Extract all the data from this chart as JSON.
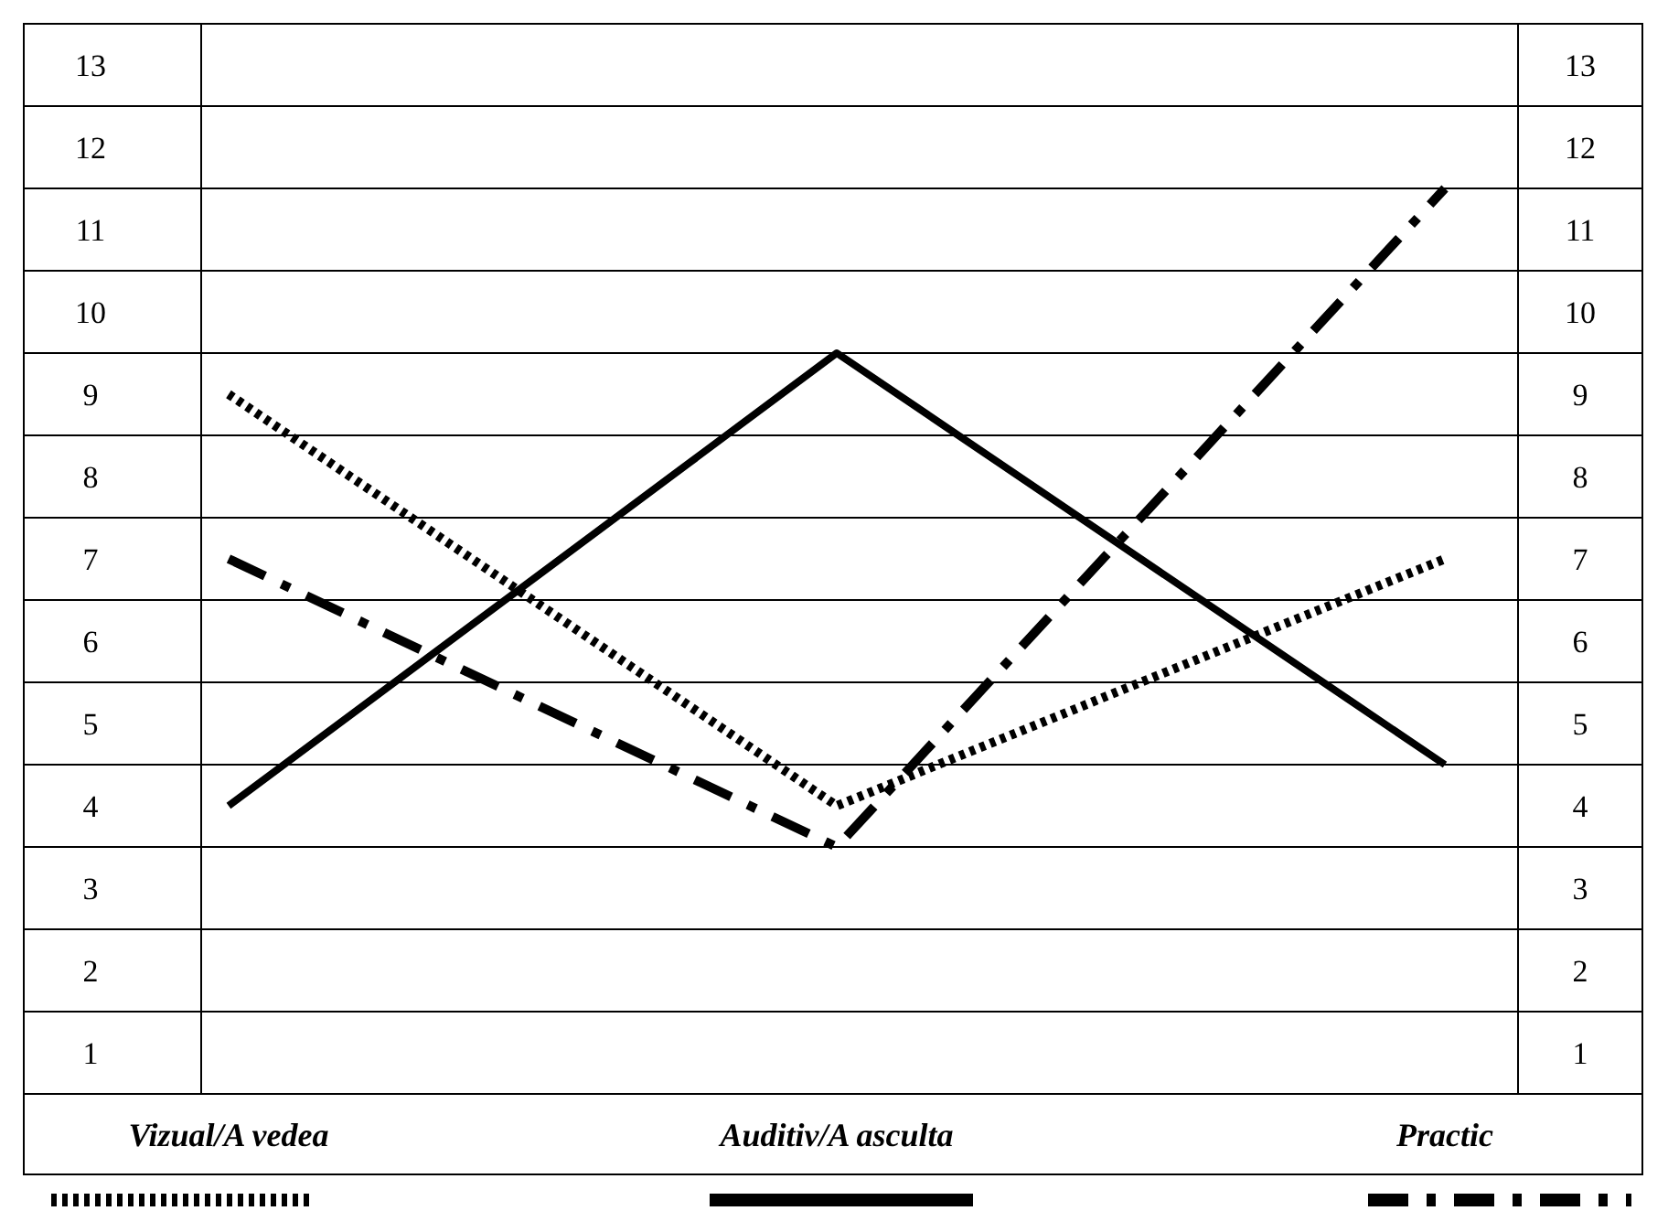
{
  "chart_data": {
    "type": "line",
    "categories": [
      "Vizual/A vedea",
      "Auditiv/A asculta",
      "Practic"
    ],
    "series": [
      {
        "color": "#000000",
        "line_style": "dotted",
        "values": [
          9,
          4,
          7
        ]
      },
      {
        "color": "#000000",
        "line_style": "solid",
        "values": [
          4,
          9.5,
          4.5
        ]
      },
      {
        "color": "#000000",
        "line_style": "dashdot",
        "values": [
          7,
          3.5,
          11.5
        ]
      }
    ],
    "ylim": [
      0.5,
      13.5
    ],
    "yticks": [
      1,
      2,
      3,
      4,
      5,
      6,
      7,
      8,
      9,
      10,
      11,
      12,
      13
    ],
    "y2lim": [
      0.5,
      13.5
    ],
    "y2ticks": [
      1,
      2,
      3,
      4,
      5,
      6,
      7,
      8,
      9,
      10,
      11,
      12,
      13
    ],
    "grid": "y",
    "marker": "none"
  }
}
